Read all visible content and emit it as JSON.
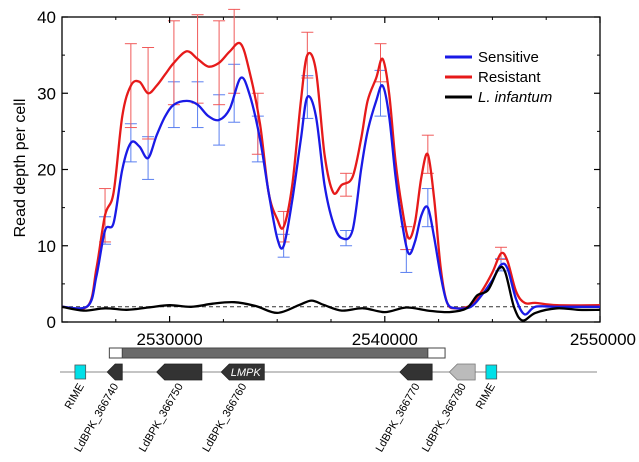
{
  "chart_data": {
    "type": "line",
    "ylabel": "Read depth per cell",
    "xlim": [
      2525000,
      2550000
    ],
    "ylim": [
      0,
      40
    ],
    "x_ticks": [
      2530000,
      2540000,
      2550000
    ],
    "x_tick_labels": [
      "2530000",
      "2540000",
      "2550000"
    ],
    "y_ticks": [
      0,
      10,
      20,
      30,
      40
    ],
    "y_tick_labels": [
      "0",
      "10",
      "20",
      "30",
      "40"
    ],
    "reference_line_y": 2,
    "grid": false,
    "legend_position": "top-right",
    "series": [
      {
        "name": "Sensitive",
        "color": "#1a1ae6",
        "points": [
          [
            2525000,
            2
          ],
          [
            2526200,
            2.1
          ],
          [
            2526600,
            6
          ],
          [
            2527000,
            12
          ],
          [
            2527400,
            13
          ],
          [
            2527800,
            20
          ],
          [
            2528200,
            23.5
          ],
          [
            2528600,
            23
          ],
          [
            2529000,
            21.5
          ],
          [
            2529400,
            24.5
          ],
          [
            2529800,
            27
          ],
          [
            2530200,
            28.5
          ],
          [
            2530800,
            29
          ],
          [
            2531300,
            28.5
          ],
          [
            2531800,
            27
          ],
          [
            2532300,
            26.5
          ],
          [
            2532800,
            28
          ],
          [
            2533300,
            32
          ],
          [
            2533700,
            30
          ],
          [
            2534200,
            24
          ],
          [
            2534600,
            17
          ],
          [
            2535000,
            11
          ],
          [
            2535300,
            10
          ],
          [
            2535700,
            16
          ],
          [
            2536100,
            24
          ],
          [
            2536400,
            29.5
          ],
          [
            2536800,
            27
          ],
          [
            2537200,
            18
          ],
          [
            2537600,
            13
          ],
          [
            2538000,
            11
          ],
          [
            2538500,
            12
          ],
          [
            2538900,
            20
          ],
          [
            2539200,
            25
          ],
          [
            2539600,
            29
          ],
          [
            2539900,
            31
          ],
          [
            2540200,
            27
          ],
          [
            2540500,
            19
          ],
          [
            2540800,
            13
          ],
          [
            2541100,
            9
          ],
          [
            2541400,
            10.5
          ],
          [
            2541700,
            14
          ],
          [
            2542000,
            15
          ],
          [
            2542300,
            11
          ],
          [
            2542600,
            6
          ],
          [
            2542900,
            2.5
          ],
          [
            2543300,
            1.8
          ],
          [
            2544000,
            2
          ],
          [
            2544500,
            3.5
          ],
          [
            2545000,
            5.5
          ],
          [
            2545400,
            7.5
          ],
          [
            2545700,
            7
          ],
          [
            2546100,
            3
          ],
          [
            2546500,
            1
          ],
          [
            2547000,
            2
          ],
          [
            2548000,
            2
          ],
          [
            2550000,
            2
          ]
        ]
      },
      {
        "name": "Resistant",
        "color": "#e61a1a",
        "points": [
          [
            2525000,
            2
          ],
          [
            2526200,
            2.1
          ],
          [
            2526600,
            7
          ],
          [
            2527000,
            14
          ],
          [
            2527400,
            17
          ],
          [
            2527800,
            27
          ],
          [
            2528200,
            31
          ],
          [
            2528600,
            31.5
          ],
          [
            2529000,
            30
          ],
          [
            2529400,
            31
          ],
          [
            2529800,
            32.5
          ],
          [
            2530200,
            34
          ],
          [
            2530800,
            35.5
          ],
          [
            2531300,
            34.5
          ],
          [
            2531800,
            33.5
          ],
          [
            2532300,
            34
          ],
          [
            2532800,
            35.5
          ],
          [
            2533300,
            36.5
          ],
          [
            2533700,
            33
          ],
          [
            2534200,
            26
          ],
          [
            2534600,
            17
          ],
          [
            2535000,
            13.5
          ],
          [
            2535300,
            12.5
          ],
          [
            2535700,
            18
          ],
          [
            2536100,
            29
          ],
          [
            2536400,
            35
          ],
          [
            2536800,
            33
          ],
          [
            2537200,
            22
          ],
          [
            2537600,
            17
          ],
          [
            2538000,
            18
          ],
          [
            2538500,
            19
          ],
          [
            2538900,
            24
          ],
          [
            2539200,
            29
          ],
          [
            2539600,
            32
          ],
          [
            2539900,
            34.5
          ],
          [
            2540200,
            30
          ],
          [
            2540500,
            21
          ],
          [
            2540800,
            15
          ],
          [
            2541100,
            11
          ],
          [
            2541400,
            13
          ],
          [
            2541700,
            19
          ],
          [
            2542000,
            22
          ],
          [
            2542300,
            16
          ],
          [
            2542600,
            7
          ],
          [
            2542900,
            2.5
          ],
          [
            2543300,
            1.8
          ],
          [
            2544000,
            2.2
          ],
          [
            2544500,
            4
          ],
          [
            2545000,
            6.5
          ],
          [
            2545400,
            9
          ],
          [
            2545700,
            8
          ],
          [
            2546100,
            4
          ],
          [
            2546500,
            2.5
          ],
          [
            2547000,
            2.5
          ],
          [
            2548000,
            2.2
          ],
          [
            2550000,
            2.2
          ]
        ]
      },
      {
        "name": "L. infantum",
        "color": "#000000",
        "points": [
          [
            2525000,
            2
          ],
          [
            2526000,
            1.5
          ],
          [
            2527000,
            1.8
          ],
          [
            2528000,
            1.6
          ],
          [
            2529000,
            1.9
          ],
          [
            2530000,
            2.2
          ],
          [
            2531000,
            2
          ],
          [
            2532000,
            2.4
          ],
          [
            2533000,
            2.6
          ],
          [
            2534000,
            2.1
          ],
          [
            2535000,
            1.2
          ],
          [
            2536000,
            2.2
          ],
          [
            2536600,
            2.8
          ],
          [
            2537200,
            2.2
          ],
          [
            2538000,
            1.5
          ],
          [
            2539000,
            1.8
          ],
          [
            2540000,
            1.3
          ],
          [
            2541000,
            1.9
          ],
          [
            2542000,
            1.5
          ],
          [
            2543000,
            1.3
          ],
          [
            2543800,
            1.8
          ],
          [
            2544300,
            3.5
          ],
          [
            2544800,
            4.2
          ],
          [
            2545300,
            7
          ],
          [
            2545600,
            6.5
          ],
          [
            2546000,
            2
          ],
          [
            2546400,
            0.2
          ],
          [
            2547000,
            1.2
          ],
          [
            2548000,
            1.8
          ],
          [
            2549000,
            1.6
          ],
          [
            2550000,
            1.6
          ]
        ]
      }
    ],
    "error_bars": {
      "Sensitive": [
        [
          2527000,
          12,
          1.8
        ],
        [
          2528200,
          23.5,
          2.5
        ],
        [
          2529000,
          21.5,
          2.8
        ],
        [
          2530200,
          28.5,
          3
        ],
        [
          2531300,
          28.5,
          3
        ],
        [
          2532300,
          26.5,
          3.3
        ],
        [
          2533000,
          30,
          3.8
        ],
        [
          2534100,
          24,
          3
        ],
        [
          2535300,
          10,
          1.5
        ],
        [
          2536400,
          29.5,
          2.8
        ],
        [
          2538200,
          11,
          1
        ],
        [
          2539800,
          30,
          3
        ],
        [
          2541000,
          8,
          1.5
        ],
        [
          2542000,
          15,
          2.5
        ],
        [
          2545400,
          7.5,
          0.8
        ]
      ],
      "Resistant": [
        [
          2527000,
          14,
          3.5
        ],
        [
          2528200,
          31,
          5.5
        ],
        [
          2529000,
          30,
          6
        ],
        [
          2530200,
          34,
          5.5
        ],
        [
          2531300,
          34.5,
          5.8
        ],
        [
          2532300,
          34,
          5.5
        ],
        [
          2533000,
          35.5,
          5.5
        ],
        [
          2534100,
          26,
          4
        ],
        [
          2535300,
          12.5,
          2
        ],
        [
          2536400,
          35,
          3
        ],
        [
          2538200,
          18,
          1.5
        ],
        [
          2539800,
          34,
          2.5
        ],
        [
          2541000,
          11,
          1.5
        ],
        [
          2542000,
          22,
          2.5
        ],
        [
          2545400,
          9,
          0.8
        ]
      ]
    }
  },
  "gene_track": {
    "region_bar": {
      "start": 2527200,
      "end": 2542800,
      "highlight_start": 2527800,
      "highlight_end": 2542000
    },
    "genes": [
      {
        "name": "RIME",
        "start": 2525600,
        "end": 2526100,
        "color": "#00e0e8",
        "type": "box"
      },
      {
        "name": "LdBPK_366740",
        "start": 2527100,
        "end": 2527800,
        "color": "#333333",
        "type": "arrow-left"
      },
      {
        "name": "LdBPK_366750",
        "start": 2529400,
        "end": 2531500,
        "color": "#333333",
        "type": "arrow-left"
      },
      {
        "name": "LdBPK_366760",
        "start": 2532400,
        "end": 2534400,
        "color": "#333333",
        "type": "arrow-left",
        "inner_label": "LMPK"
      },
      {
        "name": "LdBPK_366770",
        "start": 2540700,
        "end": 2542200,
        "color": "#333333",
        "type": "arrow-left"
      },
      {
        "name": "LdBPK_366780",
        "start": 2543000,
        "end": 2544200,
        "color": "#bbbbbb",
        "type": "arrow-left"
      },
      {
        "name": "RIME",
        "start": 2544700,
        "end": 2545200,
        "color": "#00e0e8",
        "type": "box"
      }
    ]
  }
}
